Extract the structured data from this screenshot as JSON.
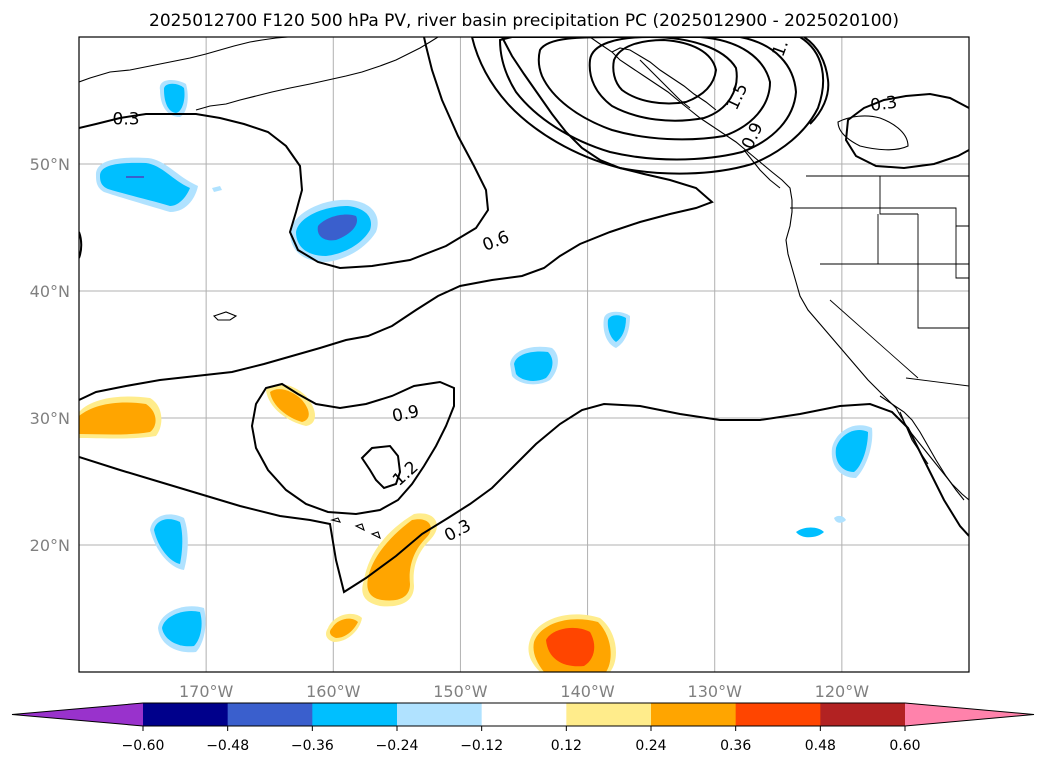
{
  "title": "2025012700 F120 500 hPa PV, river basin precipitation PC (2025012900 - 2025020100)",
  "map": {
    "lat_labels": [
      {
        "lat": 50,
        "label": "50°N"
      },
      {
        "lat": 40,
        "label": "40°N"
      },
      {
        "lat": 30,
        "label": "30°N"
      },
      {
        "lat": 20,
        "label": "20°N"
      }
    ],
    "lon_labels": [
      {
        "lon": -170,
        "label": "170°W"
      },
      {
        "lon": -160,
        "label": "160°W"
      },
      {
        "lon": -150,
        "label": "150°W"
      },
      {
        "lon": -140,
        "label": "140°W"
      },
      {
        "lon": -130,
        "label": "130°W"
      },
      {
        "lon": -120,
        "label": "120°W"
      }
    ],
    "contour_labels": [
      {
        "text": "0.3",
        "lon": -176.3,
        "lat": 53.5,
        "rot": 0
      },
      {
        "text": "0.6",
        "lon": -147.2,
        "lat": 43.9,
        "rot": -22
      },
      {
        "text": "0.9",
        "lon": -154.3,
        "lat": 30.3,
        "rot": -12
      },
      {
        "text": "1.2",
        "lon": -154.3,
        "lat": 25.6,
        "rot": -42
      },
      {
        "text": "0.3",
        "lon": -150.2,
        "lat": 21.1,
        "rot": -28
      },
      {
        "text": "0.3",
        "lon": -116.7,
        "lat": 54.7,
        "rot": -8
      },
      {
        "text": "1.5",
        "lon": -128.2,
        "lat": 55.3,
        "rot": -65
      },
      {
        "text": "0.9",
        "lon": -127.0,
        "lat": 52.2,
        "rot": -65
      },
      {
        "text": "1.",
        "lon": -124.8,
        "lat": 59.1,
        "rot": -70
      }
    ]
  },
  "colorbar": {
    "colors": [
      "#9932CC",
      "#00008B",
      "#3A5FCD",
      "#00BFFF",
      "#B0E2FF",
      "#FFFFFF",
      "#FFEC8B",
      "#FFA500",
      "#FF4500",
      "#B22222",
      "#FF82AB"
    ],
    "tick_values": [
      -0.6,
      -0.48,
      -0.36,
      -0.24,
      -0.12,
      0.12,
      0.24,
      0.36,
      0.48,
      0.6
    ],
    "tick_labels": [
      "−0.60",
      "−0.48",
      "−0.36",
      "−0.24",
      "−0.12",
      "0.12",
      "0.24",
      "0.36",
      "0.48",
      "0.60"
    ]
  }
}
